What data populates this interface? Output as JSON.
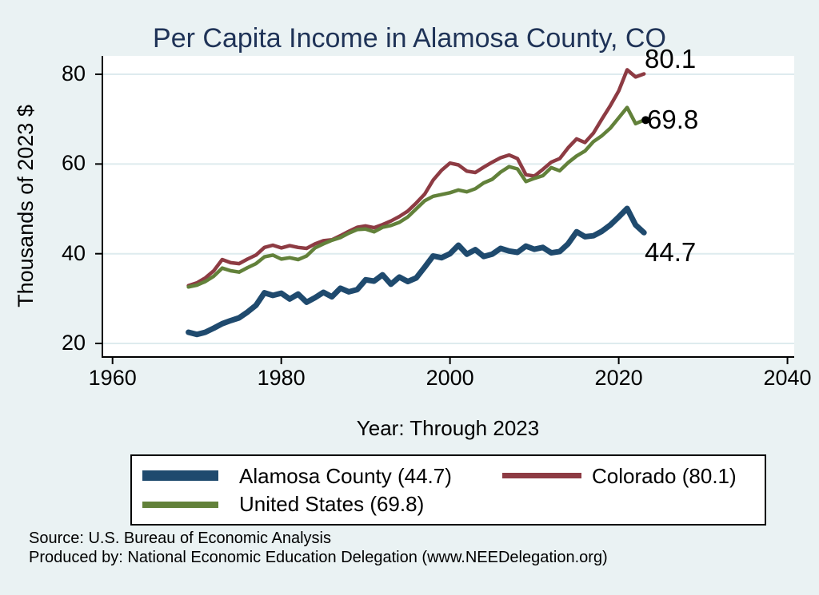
{
  "title": "Per Capita Income in Alamosa County, CO",
  "colors": {
    "background": "#eaf2f3",
    "plot_background": "#ffffff",
    "title": "#1f3357",
    "gridline": "#deebee",
    "axis": "#000000",
    "alamosa": "#1f4a6e",
    "colorado": "#8d3b43",
    "us": "#62813a"
  },
  "chart_data": {
    "type": "line",
    "title": "Per Capita Income in Alamosa County, CO",
    "xlabel": "Year: Through 2023",
    "ylabel": "Thousands of 2023 $",
    "grid": true,
    "legend_position": "bottom",
    "axes": {
      "x_min": 1958.7,
      "x_max": 2040.8,
      "x_ticks": [
        1960,
        1980,
        2000,
        2020,
        2040
      ],
      "y_min": 16.8,
      "y_max": 84.1,
      "y_ticks": [
        20,
        40,
        60,
        80
      ]
    },
    "x": [
      1969,
      1970,
      1971,
      1972,
      1973,
      1974,
      1975,
      1976,
      1977,
      1978,
      1979,
      1980,
      1981,
      1982,
      1983,
      1984,
      1985,
      1986,
      1987,
      1988,
      1989,
      1990,
      1991,
      1992,
      1993,
      1994,
      1995,
      1996,
      1997,
      1998,
      1999,
      2000,
      2001,
      2002,
      2003,
      2004,
      2005,
      2006,
      2007,
      2008,
      2009,
      2010,
      2011,
      2012,
      2013,
      2014,
      2015,
      2016,
      2017,
      2018,
      2019,
      2020,
      2021,
      2022,
      2023
    ],
    "series": [
      {
        "id": "colorado",
        "name": "Colorado",
        "legend_label": "Colorado (80.1)",
        "color": "#8d3b43",
        "final_value": 80.1,
        "emphasis": false,
        "end_marker": false,
        "values": [
          32.9,
          33.5,
          34.6,
          36.2,
          38.7,
          38.0,
          37.8,
          38.8,
          39.7,
          41.4,
          41.9,
          41.3,
          41.8,
          41.4,
          41.2,
          42.2,
          42.9,
          43.1,
          44.0,
          45.0,
          45.9,
          46.2,
          45.8,
          46.5,
          47.3,
          48.3,
          49.5,
          51.3,
          53.3,
          56.4,
          58.6,
          60.2,
          59.8,
          58.4,
          58.1,
          59.3,
          60.4,
          61.4,
          62.0,
          61.2,
          57.6,
          57.3,
          58.8,
          60.4,
          61.2,
          63.6,
          65.6,
          64.8,
          66.9,
          70.0,
          73.0,
          76.3,
          81.0,
          79.4,
          80.1
        ]
      },
      {
        "id": "us",
        "name": "United States",
        "legend_label": "United States (69.8)",
        "color": "#62813a",
        "final_value": 69.8,
        "emphasis": false,
        "end_marker": true,
        "values": [
          32.6,
          33.0,
          33.8,
          35.0,
          36.8,
          36.2,
          35.9,
          36.9,
          37.8,
          39.3,
          39.7,
          38.8,
          39.1,
          38.7,
          39.5,
          41.3,
          42.2,
          43.0,
          43.6,
          44.6,
          45.4,
          45.5,
          44.9,
          45.9,
          46.3,
          47.0,
          48.2,
          50.0,
          51.8,
          52.8,
          53.2,
          53.6,
          54.2,
          53.8,
          54.5,
          55.8,
          56.6,
          58.2,
          59.4,
          58.9,
          56.1,
          56.8,
          57.4,
          59.2,
          58.5,
          60.3,
          61.8,
          62.9,
          65.0,
          66.3,
          68.0,
          70.3,
          72.6,
          69.0,
          69.8
        ]
      },
      {
        "id": "alamosa",
        "name": "Alamosa County",
        "legend_label": "Alamosa County (44.7)",
        "color": "#1f4a6e",
        "final_value": 44.7,
        "emphasis": true,
        "end_marker": false,
        "values": [
          22.5,
          22.0,
          22.5,
          23.4,
          24.4,
          25.1,
          25.7,
          27.0,
          28.5,
          31.3,
          30.7,
          31.2,
          29.9,
          31.0,
          29.2,
          30.2,
          31.4,
          30.4,
          32.3,
          31.5,
          32.0,
          34.2,
          33.9,
          35.3,
          33.2,
          34.8,
          33.8,
          34.6,
          37.0,
          39.5,
          39.1,
          40.0,
          41.9,
          39.9,
          40.9,
          39.4,
          39.9,
          41.2,
          40.6,
          40.3,
          41.7,
          41.0,
          41.4,
          40.2,
          40.5,
          42.2,
          44.9,
          43.8,
          44.0,
          45.0,
          46.4,
          48.2,
          50.1,
          46.4,
          44.7
        ]
      }
    ],
    "end_labels": {
      "colorado": "80.1",
      "us": "69.8",
      "alamosa": "44.7"
    }
  },
  "footer": {
    "source": "Source: U.S. Bureau of Economic Analysis",
    "produced_by": "Produced by: National Economic Education Delegation (www.NEEDelegation.org)"
  }
}
